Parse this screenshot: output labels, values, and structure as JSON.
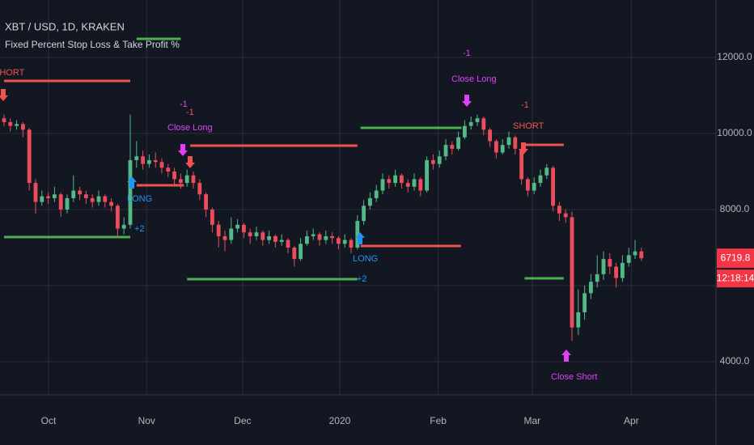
{
  "chart_data": {
    "type": "candlestick",
    "title": "XBT / USD, 1D, KRAKEN",
    "subtitle": "Fixed Percent Stop Loss & Take Profit %",
    "countdown": "12:18:14",
    "up_color": "#53b987",
    "down_color": "#eb4d5c",
    "grid": true,
    "xlim": [
      -0.64,
      112.82
    ],
    "ylim": [
      3128,
      13511
    ],
    "xticks": [
      {
        "value": 7.05,
        "label": "Oct"
      },
      {
        "value": 22.6,
        "label": "Nov"
      },
      {
        "value": 37.8,
        "label": "Dec"
      },
      {
        "value": 53.2,
        "label": "2020"
      },
      {
        "value": 68.8,
        "label": "Feb"
      },
      {
        "value": 83.7,
        "label": "Mar"
      },
      {
        "value": 99.4,
        "label": "Apr"
      }
    ],
    "yticks": [
      {
        "value": 4000,
        "label": "4000.0"
      },
      {
        "value": 6000,
        "label": null
      },
      {
        "value": 8000,
        "label": "8000.0"
      },
      {
        "value": 10000,
        "label": "10000.0"
      },
      {
        "value": 12000,
        "label": "12000.0"
      }
    ],
    "open": [
      10400,
      10300,
      10200,
      10250,
      10100,
      8700,
      8200,
      8350,
      8300,
      8400,
      8000,
      8300,
      8500,
      8400,
      8300,
      8200,
      8350,
      8200,
      8100,
      7500,
      7600,
      9300,
      9400,
      9200,
      9300,
      9250,
      9100,
      9000,
      8800,
      8700,
      8900,
      8700,
      8400,
      8000,
      7600,
      7300,
      7200,
      7500,
      7600,
      7400,
      7300,
      7400,
      7200,
      7300,
      7150,
      7200,
      7000,
      6700,
      7100,
      7300,
      7350,
      7200,
      7300,
      7250,
      7100,
      7200,
      7000,
      7700,
      8100,
      8300,
      8500,
      8800,
      8700,
      8900,
      8700,
      8600,
      8800,
      8500,
      9300,
      9200,
      9400,
      9700,
      9600,
      9900,
      10200,
      10300,
      10400,
      10100,
      9800,
      9500,
      9700,
      9900,
      9600,
      8800,
      8500,
      8700,
      8900,
      9100,
      8100,
      7900,
      7800,
      4900,
      5300,
      5800,
      6100,
      6300,
      6700,
      6500,
      6200,
      6600,
      6800,
      6900
    ],
    "high": [
      10500,
      10400,
      10350,
      10300,
      10150,
      8800,
      8500,
      8450,
      8600,
      8450,
      8400,
      8900,
      8600,
      8500,
      8400,
      8500,
      8400,
      8300,
      8150,
      7800,
      10500,
      9800,
      9550,
      9450,
      9500,
      9350,
      9200,
      9100,
      8950,
      9050,
      9000,
      8800,
      8450,
      8050,
      7700,
      7450,
      7800,
      7750,
      7650,
      7500,
      7550,
      7450,
      7450,
      7350,
      7350,
      7250,
      7050,
      7250,
      7450,
      7500,
      7400,
      7450,
      7400,
      7300,
      7350,
      7250,
      7850,
      8250,
      8450,
      8650,
      8950,
      8900,
      9050,
      8950,
      8800,
      8950,
      8850,
      9400,
      9450,
      9550,
      9850,
      9800,
      10050,
      10350,
      10450,
      10500,
      10450,
      10150,
      9850,
      9850,
      10050,
      9950,
      9650,
      8850,
      8850,
      9050,
      9200,
      9150,
      8200,
      8000,
      7950,
      5900,
      6000,
      6300,
      6800,
      6900,
      6850,
      6600,
      6800,
      7000,
      7200,
      7000
    ],
    "low": [
      10200,
      10050,
      10100,
      9900,
      8500,
      7900,
      8100,
      8150,
      8200,
      7800,
      7900,
      8200,
      8250,
      8150,
      8050,
      8100,
      8050,
      7950,
      7300,
      7350,
      7500,
      9100,
      9050,
      9100,
      9100,
      8950,
      8850,
      8600,
      8550,
      8600,
      8550,
      8250,
      7800,
      7400,
      7000,
      6900,
      7100,
      7400,
      7250,
      7100,
      7200,
      7050,
      7100,
      7000,
      7050,
      6850,
      6500,
      6650,
      7050,
      7200,
      7050,
      7100,
      7100,
      6950,
      7000,
      6850,
      6950,
      7600,
      8000,
      8200,
      8400,
      8550,
      8600,
      8550,
      8450,
      8500,
      8350,
      8450,
      9050,
      9100,
      9300,
      9450,
      9550,
      9850,
      10100,
      10200,
      9950,
      9650,
      9350,
      9450,
      9600,
      9450,
      8650,
      8350,
      8400,
      8600,
      8800,
      7950,
      7700,
      7650,
      4550,
      4700,
      5100,
      5650,
      5950,
      6150,
      6300,
      5950,
      6100,
      6500,
      6700,
      6650
    ],
    "close": [
      10300,
      10200,
      10250,
      10100,
      8700,
      8200,
      8350,
      8300,
      8400,
      8000,
      8300,
      8500,
      8400,
      8300,
      8200,
      8350,
      8200,
      8100,
      7500,
      7600,
      9300,
      9400,
      9200,
      9300,
      9250,
      9100,
      9000,
      8800,
      8700,
      8900,
      8700,
      8400,
      8000,
      7600,
      7300,
      7200,
      7500,
      7600,
      7400,
      7300,
      7400,
      7200,
      7300,
      7150,
      7200,
      7000,
      6700,
      7100,
      7300,
      7350,
      7200,
      7300,
      7250,
      7100,
      7200,
      7000,
      7700,
      8100,
      8300,
      8500,
      8800,
      8700,
      8900,
      8700,
      8600,
      8800,
      8500,
      9300,
      9200,
      9400,
      9700,
      9600,
      9900,
      10200,
      10300,
      10400,
      10100,
      9800,
      9500,
      9700,
      9900,
      9600,
      8800,
      8500,
      8700,
      8900,
      9100,
      8100,
      7900,
      7800,
      4900,
      5300,
      5800,
      6100,
      6300,
      6700,
      6500,
      6200,
      6600,
      6800,
      6900,
      6719.8
    ],
    "levels": [
      {
        "value": 11383,
        "color": "#ef5350",
        "start": 0,
        "end": 20
      },
      {
        "value": 12489,
        "color": "#4caf50",
        "start": 21,
        "end": 28
      },
      {
        "value": 7277,
        "color": "#4caf50",
        "start": 0,
        "end": 20
      },
      {
        "value": 8638,
        "color": "#ef5350",
        "start": 21,
        "end": 28.5
      },
      {
        "value": 9681,
        "color": "#ef5350",
        "start": 29.5,
        "end": 56
      },
      {
        "value": 6170,
        "color": "#4caf50",
        "start": 29,
        "end": 56
      },
      {
        "value": 7043,
        "color": "#ef5350",
        "start": 56.5,
        "end": 72.4
      },
      {
        "value": 10149,
        "color": "#4caf50",
        "start": 56.5,
        "end": 72.5
      },
      {
        "value": 9702,
        "color": "#ef5350",
        "start": 82.5,
        "end": 88.7
      },
      {
        "value": 6191,
        "color": "#4caf50",
        "start": 82.5,
        "end": 88.7
      }
    ],
    "annotations": [
      "SHORT",
      "LONG",
      "+2",
      "-1",
      "-1",
      "Close Long",
      "LONG",
      "+2",
      "-1",
      "Close Long",
      "-1",
      "SHORT",
      "Close Short"
    ]
  }
}
